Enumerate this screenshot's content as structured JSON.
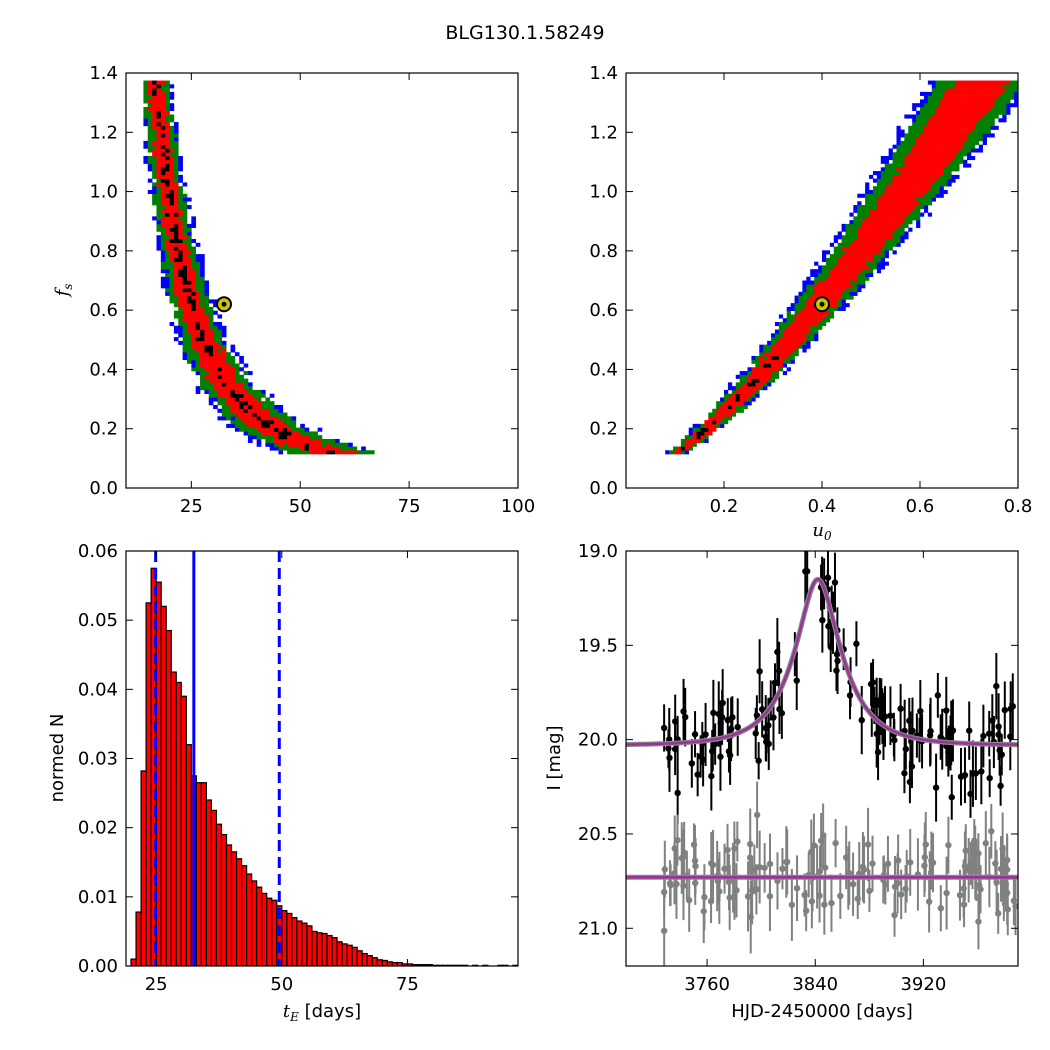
{
  "figure": {
    "title": "BLG130.1.58249"
  },
  "chart_data": [
    {
      "type": "heatmap",
      "panel": "top-left",
      "xlabel": "",
      "ylabel": "f_s",
      "xlim": [
        10,
        100
      ],
      "ylim": [
        0.0,
        1.4
      ],
      "xticks": [
        "25",
        "50",
        "75",
        "100"
      ],
      "yticks": [
        "0.0",
        "0.2",
        "0.4",
        "0.6",
        "0.8",
        "1.0",
        "1.2",
        "1.4"
      ],
      "colors": {
        "outer": "#0000ff",
        "mid": "#008000",
        "inner": "#ff0000",
        "core": "#000000",
        "marker": "#c8c800"
      },
      "best_fit": {
        "x": 32.5,
        "y": 0.62
      },
      "band": {
        "relation": "t_E ~ 19.7 / sqrt(f_s)",
        "y_range": [
          0.12,
          1.38
        ]
      }
    },
    {
      "type": "heatmap",
      "panel": "top-right",
      "xlabel": "u_0",
      "ylabel": "",
      "xlim": [
        0.0,
        0.8
      ],
      "ylim": [
        0.0,
        1.4
      ],
      "xticks": [
        "0.2",
        "0.4",
        "0.6",
        "0.8"
      ],
      "yticks": [
        "0.0",
        "0.2",
        "0.4",
        "0.6",
        "0.8",
        "1.0",
        "1.2",
        "1.4"
      ],
      "best_fit": {
        "x": 0.4,
        "y": 0.62
      },
      "band": {
        "u0_range": [
          0.1,
          0.73
        ],
        "y_range": [
          0.12,
          1.38
        ]
      }
    },
    {
      "type": "bar",
      "panel": "bottom-left",
      "xlabel": "t_E [days]",
      "ylabel": "normed N",
      "xlim": [
        19,
        97
      ],
      "ylim": [
        0.0,
        0.06
      ],
      "xticks": [
        "25",
        "50",
        "75"
      ],
      "yticks": [
        "0.00",
        "0.01",
        "0.02",
        "0.03",
        "0.04",
        "0.05",
        "0.06"
      ],
      "bin_width": 1,
      "bin_start": 20,
      "values": [
        0.001,
        0.0078,
        0.0282,
        0.0525,
        0.0575,
        0.0555,
        0.052,
        0.0485,
        0.0425,
        0.041,
        0.039,
        0.032,
        0.0275,
        0.0265,
        0.0265,
        0.024,
        0.0225,
        0.0205,
        0.019,
        0.0175,
        0.0165,
        0.0155,
        0.0145,
        0.0133,
        0.0123,
        0.0114,
        0.0105,
        0.0098,
        0.0095,
        0.0087,
        0.008,
        0.0076,
        0.007,
        0.0065,
        0.0062,
        0.0058,
        0.005,
        0.0048,
        0.0047,
        0.0044,
        0.0041,
        0.0035,
        0.0032,
        0.003,
        0.0027,
        0.0022,
        0.0018,
        0.0015,
        0.0012,
        0.0009,
        0.0008,
        0.0006,
        0.0005,
        0.0005,
        0.0003,
        0.0003,
        0.0002,
        0.0002,
        0.0002,
        0.0002,
        0.0001,
        0.0001,
        0.0001,
        0.0001,
        0.0001,
        0.0001,
        0.0001,
        0.0,
        0.0001,
        0.0,
        0.0001,
        0.0,
        0.0,
        0.0001,
        0.0001,
        0.0,
        0.0001
      ],
      "median": 32.5,
      "interval": [
        24.9,
        49.5
      ],
      "colors": {
        "bar": "#ff0000",
        "edge": "#000000",
        "lines": "#0000ff"
      }
    },
    {
      "type": "scatter",
      "panel": "bottom-right",
      "xlabel": "HJD-2450000 [days]",
      "ylabel": "I [mag]",
      "xlim": [
        3700,
        3990
      ],
      "ylim": [
        21.2,
        19.0
      ],
      "xticks": [
        "3760",
        "3840",
        "3920"
      ],
      "yticks": [
        "19.0",
        "19.5",
        "20.0",
        "20.5",
        "21.0"
      ],
      "model": {
        "t0": 3842,
        "tE": 32.5,
        "u0": 0.4,
        "baseline": 20.03,
        "shifted_baseline": 20.73,
        "color": "#993399"
      },
      "series": [
        {
          "color": "#000000",
          "error_bar": 0.14,
          "mag_offset": 0.0
        },
        {
          "color": "#808080",
          "error_bar": 0.15,
          "mag_offset": 0.7
        }
      ]
    }
  ]
}
